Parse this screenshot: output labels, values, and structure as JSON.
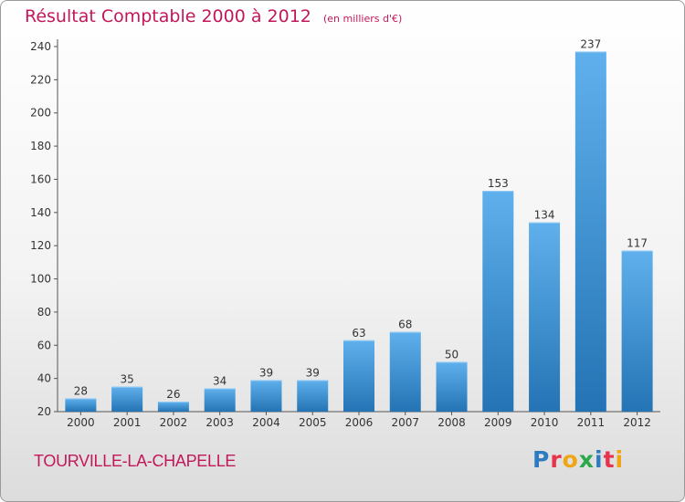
{
  "title": "Résultat Comptable 2000 à 2012",
  "subtitle": "(en milliers d'€)",
  "commune": "TOURVILLE-LA-CHAPELLE",
  "logo": {
    "letters": [
      "P",
      "r",
      "o",
      "x",
      "i",
      "t",
      "i"
    ],
    "colors": [
      "#2d7cc1",
      "#e7344d",
      "#f0a513",
      "#2aa84a",
      "#2d7cc1",
      "#e7344d",
      "#f0a513"
    ]
  },
  "colors": {
    "title": "#c2185b",
    "bar_top": "#5fb0ec",
    "bar_bottom": "#2474b5",
    "axis": "#555555"
  },
  "chart_data": {
    "type": "bar",
    "title": "Résultat Comptable 2000 à 2012",
    "subtitle": "(en milliers d'€)",
    "categories": [
      "2000",
      "2001",
      "2002",
      "2003",
      "2004",
      "2005",
      "2006",
      "2007",
      "2008",
      "2009",
      "2010",
      "2011",
      "2012"
    ],
    "values": [
      28,
      35,
      26,
      34,
      39,
      39,
      63,
      68,
      50,
      153,
      134,
      237,
      117
    ],
    "ylim": [
      20,
      240
    ],
    "yticks": [
      20,
      40,
      60,
      80,
      100,
      120,
      140,
      160,
      180,
      200,
      220,
      240
    ],
    "grid": false,
    "data_labels": true
  }
}
